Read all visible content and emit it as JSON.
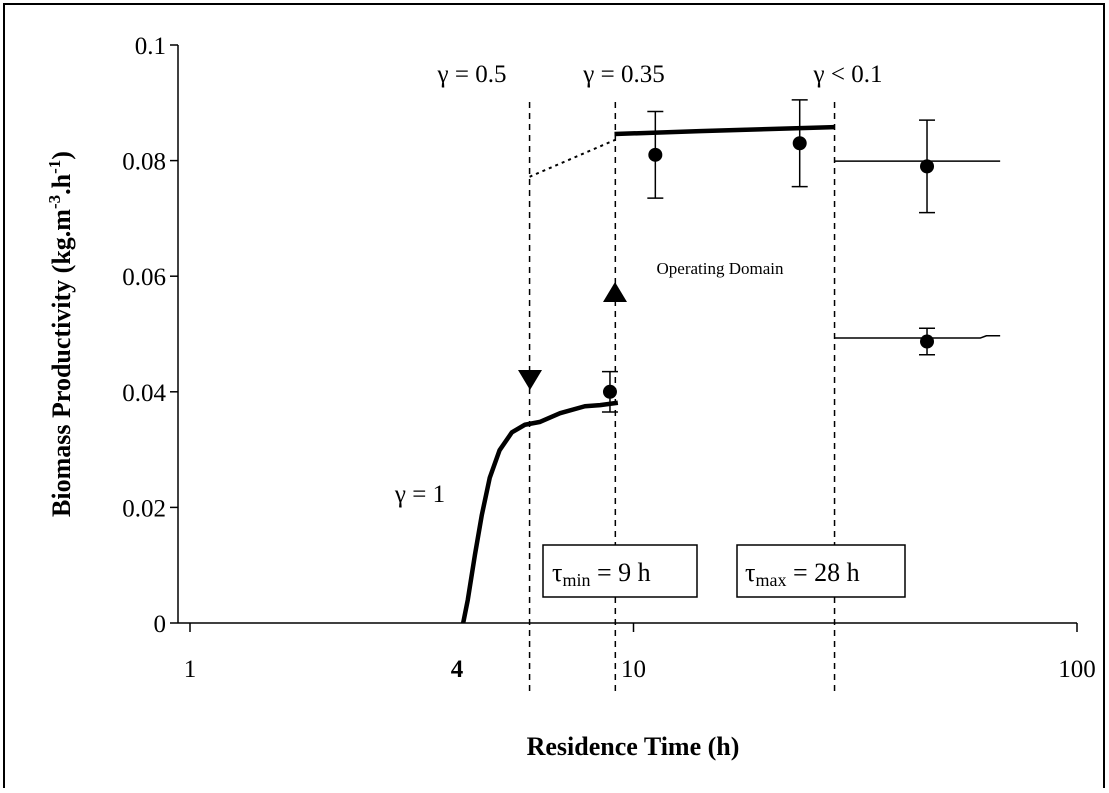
{
  "chart_data": {
    "type": "line",
    "x_scale": "log",
    "xlim": [
      1,
      100
    ],
    "xticks": [
      1,
      10,
      100
    ],
    "ylim": [
      0,
      0.1
    ],
    "yticks": [
      0,
      0.02,
      0.04,
      0.06,
      0.08,
      0.1
    ],
    "xlabel": "Residence Time (h)",
    "ylabel": {
      "text": "Biomass Productivity (kg.m",
      "sup1": "-3",
      "mid": ".h",
      "sup2": "-1",
      "end": ")"
    },
    "x_marker_label": "4",
    "color": "#000000",
    "series": [
      {
        "style": "thick",
        "x": [
          4.13,
          4.23,
          4.39,
          4.55,
          4.74,
          4.99,
          5.32,
          5.69,
          6.16,
          6.83,
          7.77,
          8.41,
          9.22
        ],
        "values": [
          0,
          0.004,
          0.0118,
          0.0187,
          0.0251,
          0.0299,
          0.033,
          0.0343,
          0.0348,
          0.0363,
          0.0375,
          0.0377,
          0.0381
        ]
      },
      {
        "style": "dotted",
        "x": [
          5.83,
          9.1
        ],
        "values": [
          0.0772,
          0.0836
        ]
      },
      {
        "style": "thick",
        "x": [
          9.06,
          14.1,
          28.4
        ],
        "values": [
          0.0846,
          0.0851,
          0.0858
        ]
      },
      {
        "style": "thin",
        "x": [
          28.4,
          67.1
        ],
        "values": [
          0.0799,
          0.0799
        ]
      },
      {
        "style": "thin",
        "x": [
          28.4,
          60.5,
          62.5,
          67.1
        ],
        "values": [
          0.0493,
          0.0493,
          0.0497,
          0.0497
        ]
      },
      {
        "style": "points",
        "x": [
          8.85,
          11.2,
          23.7,
          45.9,
          45.9
        ],
        "values": [
          0.04,
          0.081,
          0.083,
          0.079,
          0.0487
        ],
        "errors": [
          0.0035,
          0.0075,
          0.0075,
          0.008,
          0.0023
        ]
      }
    ],
    "vlines": [
      5.83,
      9.1,
      28.4
    ],
    "annotations": [
      "γ = 0.5",
      "γ = 0.35",
      "γ < 0.1",
      "γ = 1",
      "Operating Domain"
    ],
    "boxes": [
      {
        "symbol": "τ",
        "sub": "min",
        "text": " = 9 h"
      },
      {
        "symbol": "τ",
        "sub": "max",
        "text": " = 28 h"
      }
    ]
  }
}
